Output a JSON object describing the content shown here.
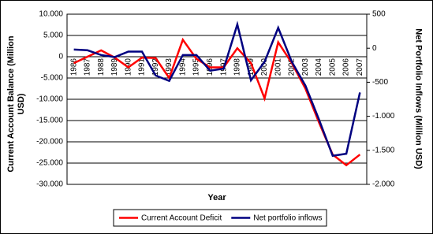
{
  "chart_data": {
    "type": "line",
    "x_label": "Year",
    "y_label": "Current Account Balance (Million USD)",
    "y2_label": "Net Portfolio Inflows (Million USD)",
    "categories": [
      "1986",
      "1987",
      "1988",
      "1989",
      "1990",
      "1991",
      "1992",
      "1993",
      "1994",
      "1995",
      "1996",
      "1997",
      "1998",
      "1999",
      "2000",
      "2001",
      "2002",
      "2003",
      "2004",
      "2005",
      "2006",
      "2007"
    ],
    "series": [
      {
        "name": "Current Account Deficit",
        "color": "#ff0000",
        "values": [
          -1500,
          0,
          1500,
          -200,
          -2500,
          -200,
          -300,
          -5000,
          4000,
          -500,
          -2500,
          -2500,
          2000,
          -1500,
          -9800,
          3400,
          -1500,
          -7500,
          -15500,
          -23000,
          -25500,
          -23000
        ]
      },
      {
        "name": "Net portfolio inflows",
        "color": "#000080",
        "axis": "y2",
        "values": [
          -20,
          -30,
          -100,
          -130,
          -50,
          -50,
          -400,
          -480,
          -100,
          -100,
          -330,
          -300,
          350,
          -470,
          -200,
          300,
          -200,
          -550,
          -1050,
          -1580,
          -1550,
          -650
        ]
      }
    ],
    "ylim": [
      -30000,
      10000
    ],
    "yticks": [
      {
        "value": -30000,
        "label": "-30.000"
      },
      {
        "value": -25000,
        "label": "-25.000"
      },
      {
        "value": -20000,
        "label": "-20.000"
      },
      {
        "value": -15000,
        "label": "-15.000"
      },
      {
        "value": -10000,
        "label": "-10.000"
      },
      {
        "value": -5000,
        "label": "-5.000"
      },
      0,
      {
        "value": 5000,
        "label": "5.000"
      },
      {
        "value": 10000,
        "label": "10.000"
      }
    ],
    "y2lim": [
      -2000,
      500
    ],
    "y2ticks": [
      {
        "value": -2000,
        "label": "-2.000"
      },
      {
        "value": -1500,
        "label": "-1.500"
      },
      {
        "value": -1000,
        "label": "-1.000"
      },
      -500,
      0,
      500
    ],
    "grid": true,
    "legend": "bottom"
  }
}
